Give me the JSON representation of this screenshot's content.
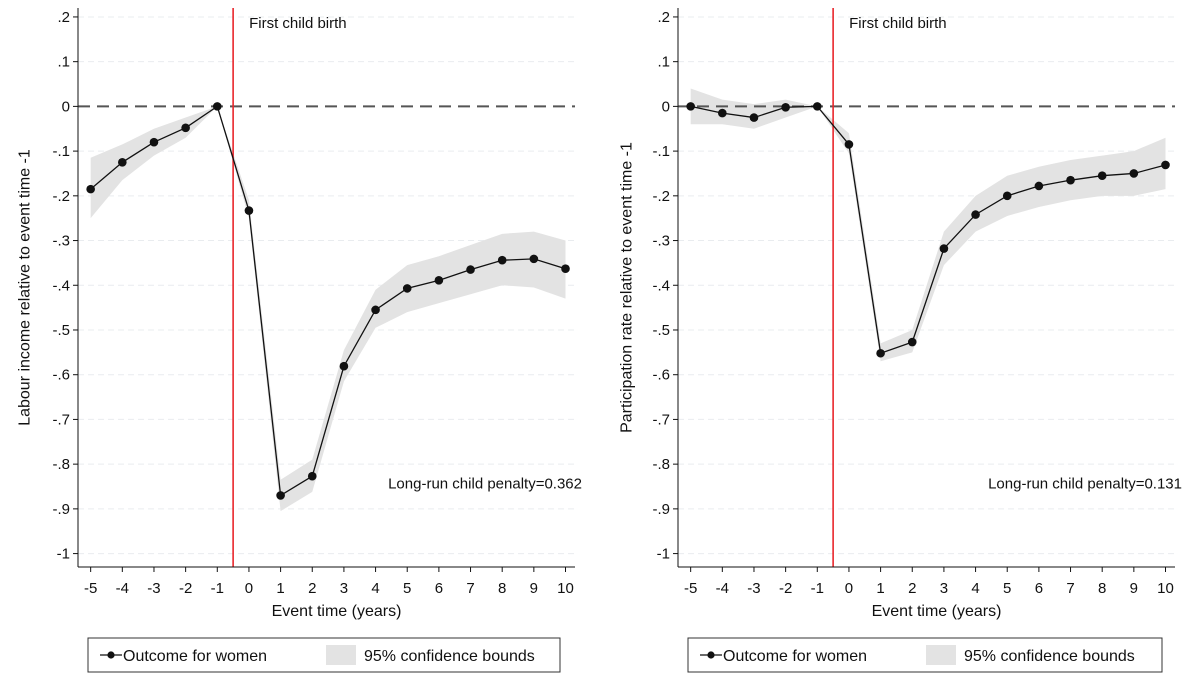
{
  "chart_data": [
    {
      "type": "line",
      "xlabel": "Event time (years)",
      "ylabel": "Labour income relative to event time -1",
      "x": [
        -5,
        -4,
        -3,
        -2,
        -1,
        0,
        1,
        2,
        3,
        4,
        5,
        6,
        7,
        8,
        9,
        10
      ],
      "xlim": [
        -5.4,
        10.3
      ],
      "ylim": [
        -1.03,
        0.22
      ],
      "xticks": [
        -5,
        -4,
        -3,
        -2,
        -1,
        0,
        1,
        2,
        3,
        4,
        5,
        6,
        7,
        8,
        9,
        10
      ],
      "xtick_labels": [
        "-5",
        "-4",
        "-3",
        "-2",
        "-1",
        "0",
        "1",
        "2",
        "3",
        "4",
        "5",
        "6",
        "7",
        "8",
        "9",
        "10"
      ],
      "yticks": [
        0.2,
        0.1,
        0,
        -0.1,
        -0.2,
        -0.3,
        -0.4,
        -0.5,
        -0.6,
        -0.7,
        -0.8,
        -0.9,
        -1
      ],
      "ytick_labels": [
        ".2",
        ".1",
        "0",
        "-.1",
        "-.2",
        "-.3",
        "-.4",
        "-.5",
        "-.6",
        "-.7",
        "-.8",
        "-.9",
        "-1"
      ],
      "grid": true,
      "reference_line": {
        "y": 0,
        "style": "dashed"
      },
      "event_line": {
        "x": -0.5,
        "label": "First child birth",
        "color": "#e8262b"
      },
      "annotation": "Long-run child penalty=0.362",
      "series": [
        {
          "name": "Outcome for women",
          "values": [
            -0.185,
            -0.125,
            -0.08,
            -0.048,
            0,
            -0.233,
            -0.87,
            -0.827,
            -0.581,
            -0.455,
            -0.407,
            -0.389,
            -0.365,
            -0.344,
            -0.341,
            -0.363
          ]
        }
      ],
      "band": {
        "name": "95% confidence bounds",
        "lower": [
          -0.25,
          -0.165,
          -0.11,
          -0.07,
          0,
          -0.25,
          -0.905,
          -0.862,
          -0.615,
          -0.495,
          -0.46,
          -0.44,
          -0.42,
          -0.4,
          -0.405,
          -0.43
        ],
        "upper": [
          -0.115,
          -0.085,
          -0.05,
          -0.025,
          0,
          -0.21,
          -0.835,
          -0.79,
          -0.545,
          -0.41,
          -0.355,
          -0.335,
          -0.31,
          -0.285,
          -0.28,
          -0.3
        ]
      },
      "legend_position": "bottom"
    },
    {
      "type": "line",
      "xlabel": "Event time (years)",
      "ylabel": "Participation rate relative to event time -1",
      "x": [
        -5,
        -4,
        -3,
        -2,
        -1,
        0,
        1,
        2,
        3,
        4,
        5,
        6,
        7,
        8,
        9,
        10
      ],
      "xlim": [
        -5.4,
        10.3
      ],
      "ylim": [
        -1.03,
        0.22
      ],
      "xticks": [
        -5,
        -4,
        -3,
        -2,
        -1,
        0,
        1,
        2,
        3,
        4,
        5,
        6,
        7,
        8,
        9,
        10
      ],
      "xtick_labels": [
        "-5",
        "-4",
        "-3",
        "-2",
        "-1",
        "0",
        "1",
        "2",
        "3",
        "4",
        "5",
        "6",
        "7",
        "8",
        "9",
        "10"
      ],
      "yticks": [
        0.2,
        0.1,
        0,
        -0.1,
        -0.2,
        -0.3,
        -0.4,
        -0.5,
        -0.6,
        -0.7,
        -0.8,
        -0.9,
        -1
      ],
      "ytick_labels": [
        ".2",
        ".1",
        "0",
        "-.1",
        "-.2",
        "-.3",
        "-.4",
        "-.5",
        "-.6",
        "-.7",
        "-.8",
        "-.9",
        "-1"
      ],
      "grid": true,
      "reference_line": {
        "y": 0,
        "style": "dashed"
      },
      "event_line": {
        "x": -0.5,
        "label": "First child birth",
        "color": "#e8262b"
      },
      "annotation": "Long-run child penalty=0.131",
      "series": [
        {
          "name": "Outcome for women",
          "values": [
            0,
            -0.015,
            -0.025,
            -0.002,
            0,
            -0.085,
            -0.552,
            -0.527,
            -0.318,
            -0.242,
            -0.2,
            -0.178,
            -0.165,
            -0.155,
            -0.15,
            -0.131
          ]
        }
      ],
      "band": {
        "name": "95% confidence bounds",
        "lower": [
          -0.04,
          -0.04,
          -0.05,
          -0.025,
          0,
          -0.105,
          -0.57,
          -0.55,
          -0.355,
          -0.28,
          -0.245,
          -0.225,
          -0.21,
          -0.2,
          -0.2,
          -0.185
        ],
        "upper": [
          0.04,
          0.015,
          0.005,
          0.015,
          0,
          -0.06,
          -0.53,
          -0.5,
          -0.28,
          -0.2,
          -0.155,
          -0.135,
          -0.12,
          -0.11,
          -0.1,
          -0.07
        ]
      },
      "legend_position": "bottom"
    }
  ],
  "legend": {
    "line_label": "Outcome for women",
    "band_label": "95% confidence bounds"
  }
}
